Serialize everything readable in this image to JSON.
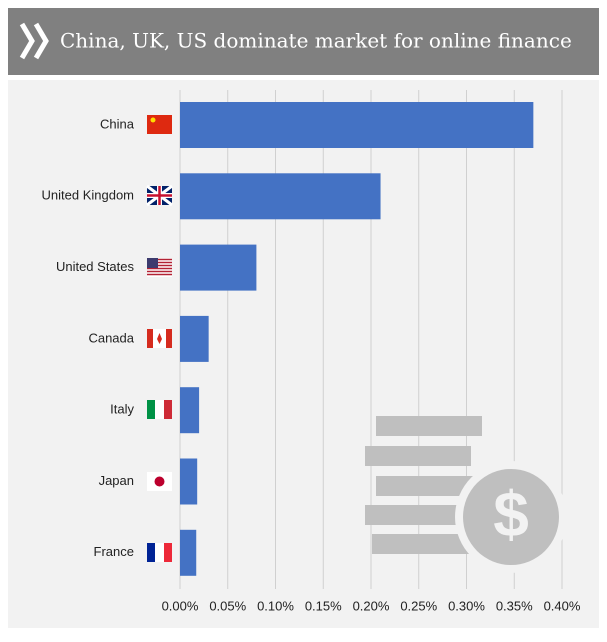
{
  "chart_data": {
    "type": "bar",
    "orientation": "horizontal",
    "title": "China, UK, US dominate market for online finance",
    "categories": [
      "China",
      "United Kingdom",
      "United States",
      "Canada",
      "Italy",
      "Japan",
      "France"
    ],
    "values": [
      0.37,
      0.21,
      0.08,
      0.03,
      0.02,
      0.018,
      0.017
    ],
    "color": "#4472c4",
    "xlim": [
      0,
      0.4
    ],
    "xticks": [
      {
        "value": 0,
        "label": "0.00%"
      },
      {
        "value": 0.05,
        "label": "0.05%"
      },
      {
        "value": 0.1,
        "label": "0.10%"
      },
      {
        "value": 0.15,
        "label": "0.15%"
      },
      {
        "value": 0.2,
        "label": "0.20%"
      },
      {
        "value": 0.25,
        "label": "0.25%"
      },
      {
        "value": 0.3,
        "label": "0.30%"
      },
      {
        "value": 0.35,
        "label": "0.35%"
      },
      {
        "value": 0.4,
        "label": "0.40%"
      }
    ],
    "grid": true
  }
}
